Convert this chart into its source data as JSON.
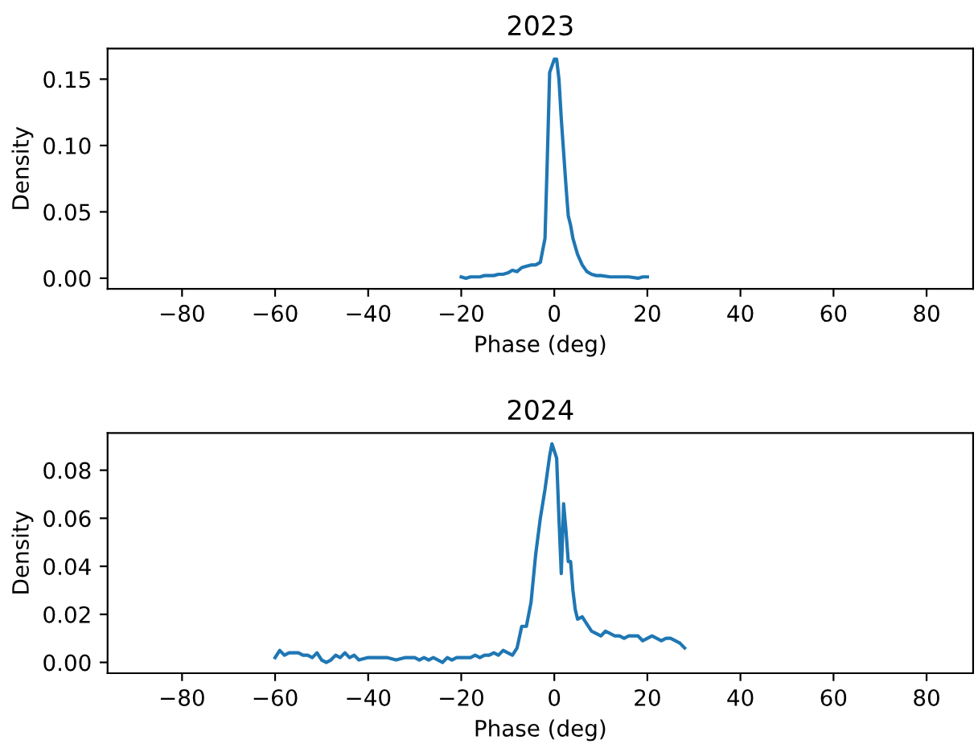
{
  "chart_data": [
    {
      "type": "line",
      "title": "2023",
      "xlabel": "Phase (deg)",
      "ylabel": "Density",
      "xlim": [
        -96,
        90
      ],
      "xticks": [
        {
          "value": -80,
          "label": "−80"
        },
        {
          "value": -60,
          "label": "−60"
        },
        {
          "value": -40,
          "label": "−40"
        },
        {
          "value": -20,
          "label": "−20"
        },
        0,
        20,
        40,
        60,
        80
      ],
      "ylim": [
        -0.008,
        0.173
      ],
      "yticks": [
        {
          "value": 0,
          "label": "0.00"
        },
        {
          "value": 0.05,
          "label": "0.05"
        },
        {
          "value": 0.1,
          "label": "0.10"
        },
        {
          "value": 0.15,
          "label": "0.15"
        }
      ],
      "series": [
        {
          "color": "#1f77b4",
          "x": [
            -20,
            -19,
            -18,
            -17,
            -16,
            -15,
            -14,
            -13,
            -12,
            -11,
            -10,
            -9,
            -8,
            -7,
            -6,
            -5,
            -4,
            -3,
            -2,
            -1.5,
            -1,
            -0.5,
            0,
            0.5,
            1,
            1.5,
            2,
            2.5,
            3,
            3.5,
            4,
            5,
            6,
            7,
            8,
            9,
            10,
            12,
            14,
            16,
            18,
            19,
            20
          ],
          "values": [
            0.001,
            0.0,
            0.001,
            0.001,
            0.001,
            0.002,
            0.002,
            0.002,
            0.003,
            0.003,
            0.004,
            0.006,
            0.005,
            0.008,
            0.009,
            0.01,
            0.01,
            0.012,
            0.03,
            0.09,
            0.155,
            0.16,
            0.165,
            0.165,
            0.15,
            0.12,
            0.095,
            0.07,
            0.047,
            0.04,
            0.03,
            0.018,
            0.01,
            0.005,
            0.003,
            0.002,
            0.002,
            0.001,
            0.001,
            0.001,
            0.0,
            0.001,
            0.001
          ]
        }
      ]
    },
    {
      "type": "line",
      "title": "2024",
      "xlabel": "Phase (deg)",
      "ylabel": "Density",
      "xlim": [
        -96,
        90
      ],
      "xticks": [
        {
          "value": -80,
          "label": "−80"
        },
        {
          "value": -60,
          "label": "−60"
        },
        {
          "value": -40,
          "label": "−40"
        },
        {
          "value": -20,
          "label": "−20"
        },
        0,
        20,
        40,
        60,
        80
      ],
      "ylim": [
        -0.0045,
        0.0955
      ],
      "yticks": [
        {
          "value": 0,
          "label": "0.00"
        },
        {
          "value": 0.02,
          "label": "0.02"
        },
        {
          "value": 0.04,
          "label": "0.04"
        },
        {
          "value": 0.06,
          "label": "0.06"
        },
        {
          "value": 0.08,
          "label": "0.08"
        }
      ],
      "series": [
        {
          "color": "#1f77b4",
          "x": [
            -60,
            -59,
            -58,
            -57,
            -56,
            -55,
            -54,
            -53,
            -52,
            -51,
            -50,
            -49,
            -48,
            -47,
            -46,
            -45,
            -44,
            -43,
            -42,
            -40,
            -38,
            -36,
            -34,
            -32,
            -30,
            -29,
            -28,
            -27,
            -26,
            -25,
            -24,
            -23,
            -22,
            -21,
            -20,
            -19,
            -18,
            -17,
            -16,
            -15,
            -14,
            -13,
            -12,
            -11,
            -10,
            -9,
            -8,
            -7,
            -6,
            -5,
            -4,
            -3,
            -2,
            -1,
            -0.5,
            0,
            0.5,
            1,
            1.5,
            2,
            2.5,
            3,
            3.5,
            4,
            4.5,
            5,
            6,
            7,
            8,
            9,
            10,
            11,
            12,
            13,
            14,
            15,
            16,
            17,
            18,
            19,
            20,
            21,
            22,
            23,
            24,
            25,
            26,
            27,
            28
          ],
          "values": [
            0.002,
            0.005,
            0.003,
            0.004,
            0.004,
            0.004,
            0.003,
            0.003,
            0.002,
            0.004,
            0.001,
            0.0,
            0.001,
            0.003,
            0.002,
            0.004,
            0.002,
            0.003,
            0.001,
            0.002,
            0.002,
            0.002,
            0.001,
            0.002,
            0.002,
            0.001,
            0.002,
            0.001,
            0.002,
            0.001,
            0.0,
            0.002,
            0.001,
            0.002,
            0.002,
            0.002,
            0.002,
            0.003,
            0.002,
            0.003,
            0.003,
            0.004,
            0.003,
            0.005,
            0.004,
            0.003,
            0.006,
            0.015,
            0.015,
            0.025,
            0.045,
            0.06,
            0.072,
            0.086,
            0.091,
            0.088,
            0.085,
            0.06,
            0.037,
            0.066,
            0.055,
            0.042,
            0.042,
            0.03,
            0.022,
            0.018,
            0.019,
            0.016,
            0.013,
            0.012,
            0.011,
            0.013,
            0.012,
            0.011,
            0.011,
            0.01,
            0.011,
            0.011,
            0.011,
            0.009,
            0.01,
            0.011,
            0.01,
            0.009,
            0.01,
            0.01,
            0.009,
            0.008,
            0.006
          ]
        }
      ]
    }
  ]
}
